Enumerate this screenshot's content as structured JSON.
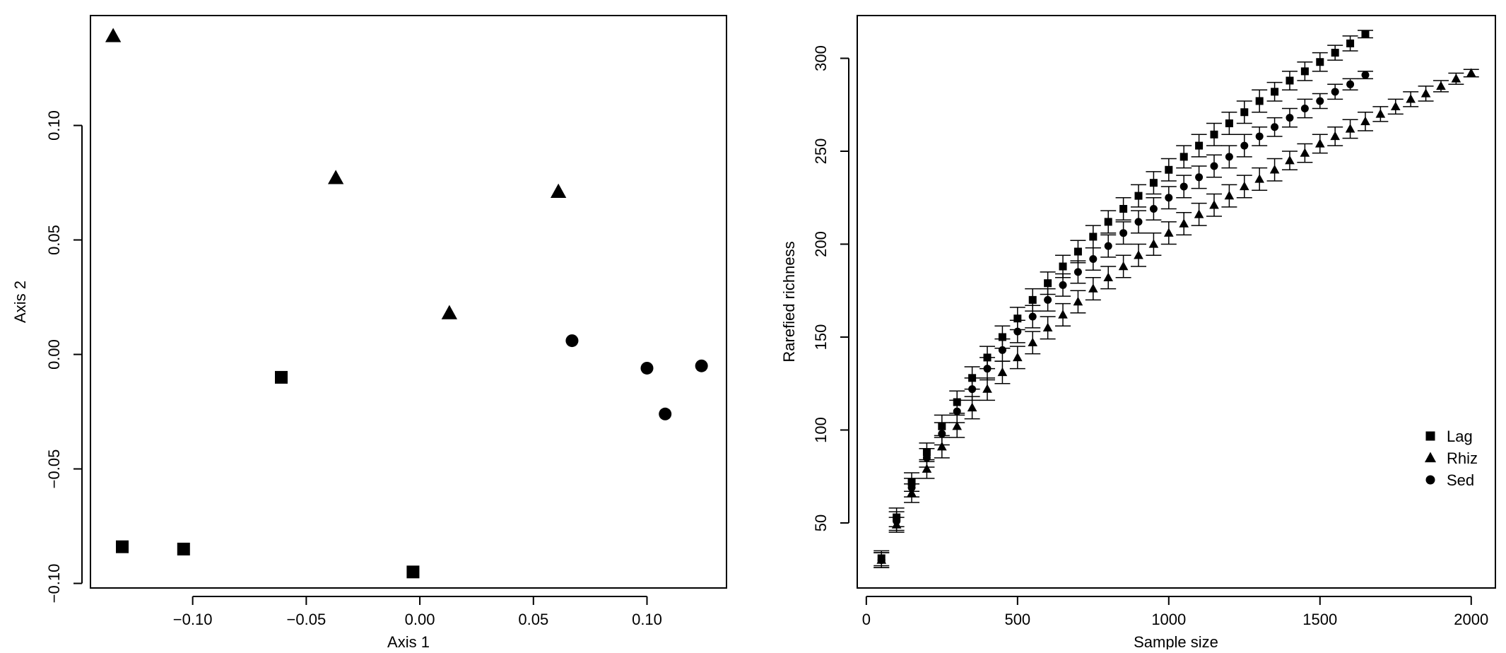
{
  "chart_data": [
    {
      "type": "scatter",
      "title": "",
      "xlabel": "Axis 1",
      "ylabel": "Axis 2",
      "xlim": [
        -0.145,
        0.135
      ],
      "ylim": [
        -0.102,
        0.148
      ],
      "xticks": [
        -0.1,
        -0.05,
        0.0,
        0.05,
        0.1
      ],
      "xtick_labels": [
        "−0.10",
        "−0.05",
        "0.00",
        "0.05",
        "0.10"
      ],
      "yticks": [
        -0.1,
        -0.05,
        0.0,
        0.05,
        0.1
      ],
      "ytick_labels": [
        "−0.10",
        "−0.05",
        "0.00",
        "0.05",
        "0.10"
      ],
      "grid": false,
      "series": [
        {
          "marker": "square",
          "points": [
            [
              -0.131,
              -0.084
            ],
            [
              -0.104,
              -0.085
            ],
            [
              -0.061,
              -0.01
            ],
            [
              -0.003,
              -0.095
            ]
          ]
        },
        {
          "marker": "triangle",
          "points": [
            [
              -0.135,
              0.139
            ],
            [
              -0.037,
              0.077
            ],
            [
              0.013,
              0.018
            ],
            [
              0.061,
              0.071
            ]
          ]
        },
        {
          "marker": "circle",
          "points": [
            [
              0.067,
              0.006
            ],
            [
              0.1,
              -0.006
            ],
            [
              0.108,
              -0.026
            ],
            [
              0.124,
              -0.005
            ]
          ]
        }
      ]
    },
    {
      "type": "scatter",
      "title": "",
      "xlabel": "Sample size",
      "ylabel": "Rarefied richness",
      "xlim": [
        -30,
        2080
      ],
      "ylim": [
        15,
        323
      ],
      "xticks": [
        0,
        500,
        1000,
        1500,
        2000
      ],
      "xtick_labels": [
        "0",
        "500",
        "1000",
        "1500",
        "2000"
      ],
      "yticks": [
        50,
        100,
        150,
        200,
        250,
        300
      ],
      "ytick_labels": [
        "50",
        "100",
        "150",
        "200",
        "250",
        "300"
      ],
      "grid": false,
      "legend": {
        "position": "right",
        "entries": [
          {
            "label": "Lag",
            "marker": "square"
          },
          {
            "label": "Rhiz",
            "marker": "triangle"
          },
          {
            "label": "Sed",
            "marker": "circle"
          }
        ]
      },
      "series": [
        {
          "name": "Lag",
          "marker": "square",
          "x": [
            50,
            100,
            150,
            200,
            250,
            300,
            350,
            400,
            450,
            500,
            550,
            600,
            650,
            700,
            750,
            800,
            850,
            900,
            950,
            1000,
            1050,
            1100,
            1150,
            1200,
            1250,
            1300,
            1350,
            1400,
            1450,
            1500,
            1550,
            1600,
            1650
          ],
          "y": [
            31,
            53,
            72,
            88,
            102,
            115,
            128,
            139,
            150,
            160,
            170,
            179,
            188,
            196,
            204,
            212,
            219,
            226,
            233,
            240,
            247,
            253,
            259,
            265,
            271,
            277,
            282,
            288,
            293,
            298,
            303,
            308,
            313
          ],
          "err": [
            4,
            5,
            5,
            5,
            6,
            6,
            6,
            6,
            6,
            6,
            6,
            6,
            6,
            6,
            6,
            6,
            6,
            6,
            6,
            6,
            6,
            6,
            6,
            6,
            6,
            6,
            5,
            5,
            5,
            5,
            4,
            4,
            2
          ]
        },
        {
          "name": "Rhiz",
          "marker": "triangle",
          "x": [
            50,
            100,
            150,
            200,
            250,
            300,
            350,
            400,
            450,
            500,
            550,
            600,
            650,
            700,
            750,
            800,
            850,
            900,
            950,
            1000,
            1050,
            1100,
            1150,
            1200,
            1250,
            1300,
            1350,
            1400,
            1450,
            1500,
            1550,
            1600,
            1650,
            1700,
            1750,
            1800,
            1850,
            1900,
            1950,
            2000
          ],
          "y": [
            30,
            49,
            66,
            79,
            91,
            102,
            112,
            122,
            131,
            139,
            147,
            155,
            162,
            169,
            176,
            182,
            188,
            194,
            200,
            206,
            211,
            216,
            221,
            226,
            231,
            235,
            240,
            245,
            249,
            254,
            258,
            262,
            266,
            270,
            274,
            278,
            281,
            285,
            289,
            292
          ],
          "err": [
            4,
            4,
            5,
            5,
            6,
            6,
            6,
            6,
            6,
            6,
            6,
            6,
            6,
            6,
            6,
            6,
            6,
            6,
            6,
            6,
            6,
            6,
            6,
            6,
            6,
            6,
            6,
            5,
            5,
            5,
            5,
            5,
            5,
            4,
            4,
            4,
            4,
            3,
            3,
            2
          ]
        },
        {
          "name": "Sed",
          "marker": "circle",
          "x": [
            50,
            100,
            150,
            200,
            250,
            300,
            350,
            400,
            450,
            500,
            550,
            600,
            650,
            700,
            750,
            800,
            850,
            900,
            950,
            1000,
            1050,
            1100,
            1150,
            1200,
            1250,
            1300,
            1350,
            1400,
            1450,
            1500,
            1550,
            1600,
            1650
          ],
          "y": [
            30,
            51,
            69,
            85,
            98,
            110,
            122,
            133,
            143,
            153,
            161,
            170,
            178,
            185,
            192,
            199,
            206,
            212,
            219,
            225,
            231,
            236,
            242,
            247,
            253,
            258,
            263,
            268,
            273,
            277,
            282,
            286,
            291
          ],
          "err": [
            4,
            5,
            5,
            5,
            6,
            6,
            6,
            6,
            6,
            6,
            6,
            6,
            6,
            6,
            6,
            6,
            6,
            6,
            6,
            6,
            6,
            6,
            6,
            6,
            6,
            5,
            5,
            5,
            5,
            4,
            4,
            3,
            2
          ]
        }
      ]
    }
  ]
}
